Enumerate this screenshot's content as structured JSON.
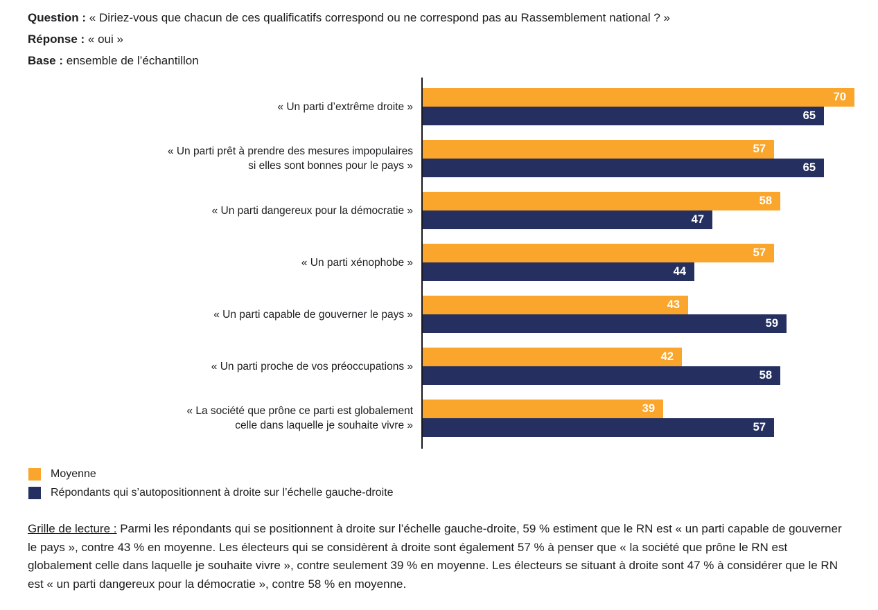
{
  "header": {
    "question_label": "Question :",
    "question_text": " « Diriez-vous que chacun de ces qualificatifs correspond ou ne correspond pas au Rassemblement national ? »",
    "reponse_label": "Réponse :",
    "reponse_text": " « oui »",
    "base_label": "Base :",
    "base_text": " ensemble de l’échantillon"
  },
  "chart_data": {
    "type": "bar",
    "orientation": "horizontal",
    "categories": [
      "« Un parti d’extrême droite »",
      "« Un parti prêt à prendre des mesures impopulaires\nsi elles sont bonnes pour le pays »",
      "« Un parti dangereux pour la démocratie »",
      "« Un parti xénophobe »",
      "« Un parti capable de gouverner le pays »",
      "« Un parti proche de vos préoccupations »",
      "« La société que prône ce parti est globalement\ncelle dans laquelle je souhaite vivre »"
    ],
    "series": [
      {
        "name": "Moyenne",
        "color": "#FAA62D",
        "values": [
          70,
          57,
          58,
          57,
          43,
          42,
          39
        ]
      },
      {
        "name": "Répondants qui s’autopositionnent à droite sur l’échelle gauche-droite",
        "color": "#253060",
        "values": [
          65,
          65,
          47,
          44,
          59,
          58,
          57
        ]
      }
    ],
    "xlim": [
      0,
      70
    ],
    "value_label_color": "#FFFFFF",
    "axis_color": "#17171C",
    "grid": false,
    "legend_position": "bottom-left"
  },
  "legend": {
    "items": [
      {
        "label": "Moyenne",
        "color": "#FAA62D"
      },
      {
        "label": "Répondants qui s’autopositionnent à droite sur l’échelle gauche-droite",
        "color": "#253060"
      }
    ]
  },
  "reading_note": {
    "label": "Grille de lecture :",
    "text": " Parmi les répondants qui se positionnent à droite sur l’échelle gauche-droite, 59 % estiment que le RN est « un parti capable de gouverner le pays », contre 43 % en moyenne. Les électeurs qui se considèrent à droite sont également 57 % à penser que « la société que prône le RN est globalement celle dans laquelle je souhaite vivre », contre seulement 39 % en moyenne. Les électeurs se situant à droite sont 47 % à considérer que le RN est « un parti dangereux pour la démocratie », contre 58 % en moyenne."
  }
}
